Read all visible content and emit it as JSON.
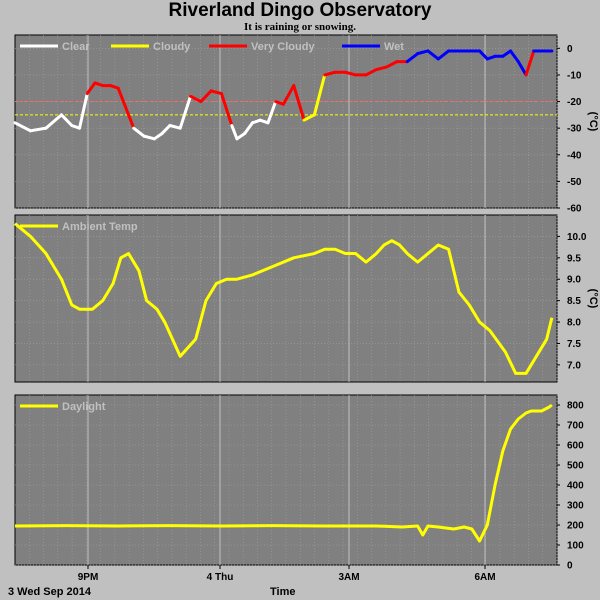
{
  "header": {
    "title": "Riverland Dingo Observatory",
    "subtitle": "It is raining or snowing.",
    "date_label": "3 Wed Sep 2014",
    "xlabel": "Time"
  },
  "chart_data": [
    {
      "type": "line",
      "panel": "cloud",
      "ylabel": "(°C)",
      "ylim": [
        -60,
        5
      ],
      "yticks": [
        0,
        -10,
        -20,
        -30,
        -40,
        -50,
        -60
      ],
      "thresholds": [
        {
          "value": -20,
          "color": "#ff6666"
        },
        {
          "value": -25,
          "color": "#ffff00"
        }
      ],
      "xticks": [
        "9PM",
        "4 Thu",
        "3AM",
        "6AM"
      ],
      "grid": true,
      "legend_position": "top-left",
      "series": [
        {
          "name": "Clear",
          "color": "#ffffff"
        },
        {
          "name": "Cloudy",
          "color": "#ffff00"
        },
        {
          "name": "Very Cloudy",
          "color": "#ff0000"
        },
        {
          "name": "Wet",
          "color": "#0000ff"
        }
      ],
      "x": [
        0.0,
        0.3,
        0.6,
        0.9,
        1.1,
        1.25,
        1.4,
        1.55,
        1.7,
        1.85,
        2.0,
        2.3,
        2.5,
        2.7,
        2.85,
        3.0,
        3.2,
        3.4,
        3.6,
        3.8,
        4.0,
        4.2,
        4.3,
        4.45,
        4.6,
        4.75,
        4.9,
        5.05,
        5.2,
        5.4,
        5.6,
        5.8,
        6.0,
        6.2,
        6.4,
        6.6,
        6.8,
        7.0,
        7.2,
        7.4,
        7.6,
        7.8,
        8.0,
        8.2,
        8.4,
        8.55,
        8.7,
        8.85,
        9.0,
        9.15,
        9.3,
        9.45,
        9.6,
        9.75,
        9.9,
        10.05,
        10.2,
        10.4
      ],
      "y": [
        -28,
        -31,
        -30,
        -25,
        -29,
        -30,
        -17,
        -13,
        -14,
        -14,
        -15,
        -30,
        -33,
        -34,
        -32,
        -29,
        -30,
        -18,
        -20,
        -16,
        -17,
        -29,
        -34,
        -32,
        -28,
        -27,
        -28,
        -20,
        -21,
        -14,
        -27,
        -25,
        -10,
        -9,
        -9,
        -10,
        -10,
        -8,
        -7,
        -5,
        -5,
        -2,
        -1,
        -4,
        -1,
        -1,
        -1,
        -1,
        -1,
        -4,
        -3,
        -3,
        -1,
        -5,
        -10,
        -1,
        -1,
        -1
      ],
      "condition": [
        "Clear",
        "Clear",
        "Clear",
        "Clear",
        "Clear",
        "Clear",
        "Very Cloudy",
        "Very Cloudy",
        "Very Cloudy",
        "Very Cloudy",
        "Very Cloudy",
        "Clear",
        "Clear",
        "Clear",
        "Clear",
        "Clear",
        "Clear",
        "Very Cloudy",
        "Very Cloudy",
        "Very Cloudy",
        "Very Cloudy",
        "Clear",
        "Clear",
        "Clear",
        "Clear",
        "Clear",
        "Clear",
        "Very Cloudy",
        "Very Cloudy",
        "Very Cloudy",
        "Cloudy",
        "Cloudy",
        "Very Cloudy",
        "Very Cloudy",
        "Very Cloudy",
        "Very Cloudy",
        "Very Cloudy",
        "Very Cloudy",
        "Very Cloudy",
        "Very Cloudy",
        "Wet",
        "Wet",
        "Wet",
        "Wet",
        "Wet",
        "Wet",
        "Wet",
        "Wet",
        "Wet",
        "Wet",
        "Wet",
        "Wet",
        "Wet",
        "Wet",
        "Very Cloudy",
        "Wet",
        "Wet",
        "Wet"
      ]
    },
    {
      "type": "line",
      "panel": "ambient",
      "ylabel": "(°C)",
      "ylim": [
        6.6,
        10.5
      ],
      "yticks": [
        10.0,
        9.5,
        9.0,
        8.5,
        8.0,
        7.5,
        7.0
      ],
      "xticks": [
        "9PM",
        "4 Thu",
        "3AM",
        "6AM"
      ],
      "grid": true,
      "legend_position": "top-left",
      "series": [
        {
          "name": "Ambient Temp",
          "color": "#ffff00",
          "x": [
            0.0,
            0.3,
            0.6,
            0.9,
            1.1,
            1.25,
            1.5,
            1.7,
            1.9,
            2.05,
            2.2,
            2.4,
            2.55,
            2.75,
            2.9,
            3.05,
            3.2,
            3.5,
            3.7,
            3.9,
            4.1,
            4.3,
            4.6,
            5.0,
            5.4,
            5.8,
            6.0,
            6.2,
            6.4,
            6.6,
            6.8,
            7.0,
            7.15,
            7.3,
            7.45,
            7.6,
            7.8,
            8.0,
            8.2,
            8.4,
            8.6,
            8.8,
            9.0,
            9.2,
            9.5,
            9.7,
            9.9,
            10.1,
            10.3,
            10.4
          ],
          "values": [
            10.3,
            10.0,
            9.6,
            9.0,
            8.4,
            8.3,
            8.3,
            8.5,
            8.9,
            9.5,
            9.6,
            9.2,
            8.5,
            8.3,
            8.0,
            7.6,
            7.2,
            7.6,
            8.5,
            8.9,
            9.0,
            9.0,
            9.1,
            9.3,
            9.5,
            9.6,
            9.7,
            9.7,
            9.6,
            9.6,
            9.4,
            9.6,
            9.8,
            9.9,
            9.8,
            9.6,
            9.4,
            9.6,
            9.8,
            9.7,
            8.7,
            8.4,
            8.0,
            7.8,
            7.3,
            6.8,
            6.8,
            7.2,
            7.6,
            8.1
          ]
        }
      ]
    },
    {
      "type": "line",
      "panel": "daylight",
      "ylabel": "",
      "ylim": [
        0,
        850
      ],
      "yticks": [
        800,
        700,
        600,
        500,
        400,
        300,
        200,
        100,
        0
      ],
      "xticks": [
        "9PM",
        "4 Thu",
        "3AM",
        "6AM"
      ],
      "grid": true,
      "legend_position": "top-left",
      "series": [
        {
          "name": "Daylight",
          "color": "#ffff00",
          "x": [
            0.0,
            1.0,
            2.0,
            3.0,
            4.0,
            5.0,
            6.0,
            7.0,
            7.5,
            7.8,
            7.9,
            8.0,
            8.2,
            8.5,
            8.7,
            8.85,
            9.0,
            9.15,
            9.3,
            9.45,
            9.6,
            9.75,
            9.9,
            10.0,
            10.2,
            10.35,
            10.4
          ],
          "values": [
            195,
            197,
            195,
            197,
            195,
            197,
            195,
            195,
            190,
            195,
            150,
            195,
            190,
            180,
            190,
            180,
            120,
            200,
            400,
            570,
            680,
            730,
            760,
            770,
            770,
            790,
            800
          ]
        }
      ]
    }
  ]
}
